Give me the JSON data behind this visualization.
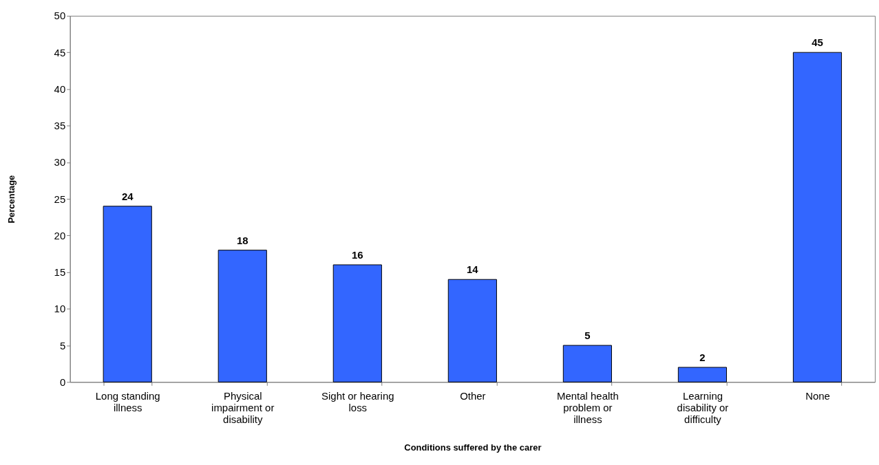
{
  "chart_data": {
    "type": "bar",
    "xlabel": "Conditions suffered by the carer",
    "ylabel": "Percentage",
    "categories": [
      "Long standing illness",
      "Physical impairment or disability",
      "Sight or hearing loss",
      "Other",
      "Mental health problem or illness",
      "Learning disability or difficulty",
      "None"
    ],
    "values": [
      24,
      18,
      16,
      14,
      5,
      2,
      45
    ],
    "color": "#3366ff",
    "ylim": [
      0,
      50
    ],
    "yticks": [
      0,
      5,
      10,
      15,
      20,
      25,
      30,
      35,
      40,
      45,
      50
    ],
    "grid": false,
    "data_labels": true
  }
}
